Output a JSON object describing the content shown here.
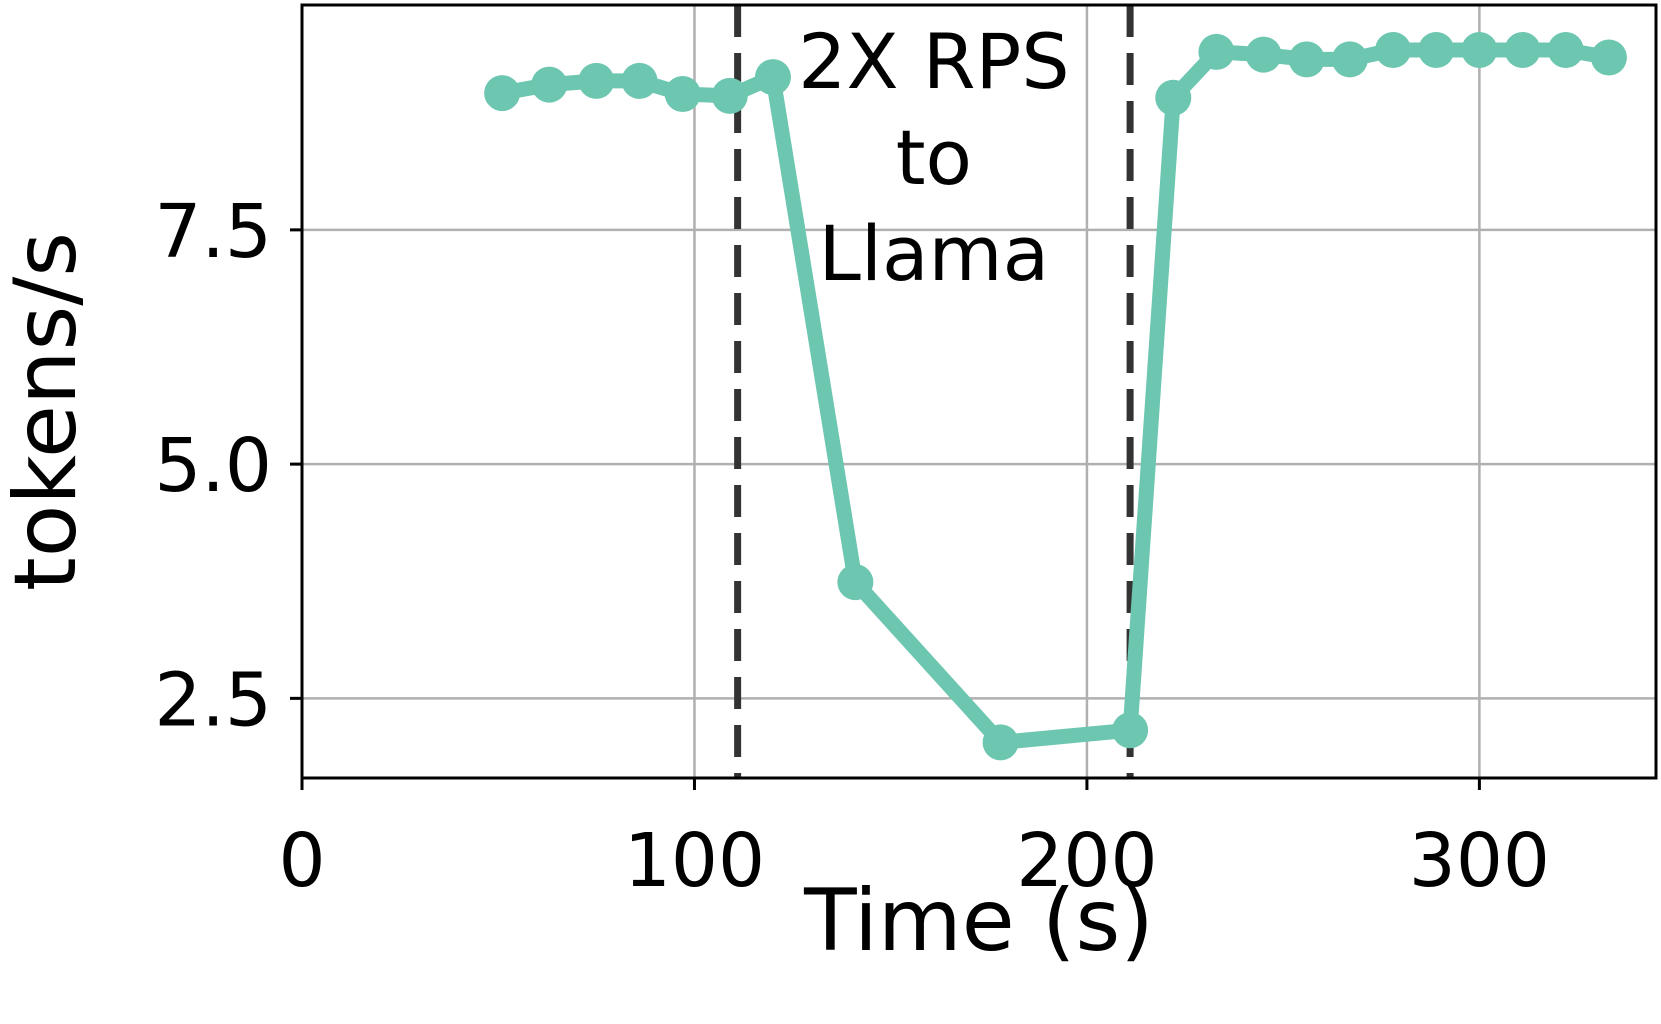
{
  "chart_data": {
    "type": "line",
    "xlabel": "Time (s)",
    "ylabel": "tokens/s",
    "xlim": [
      0,
      345
    ],
    "ylim": [
      1.65,
      9.9
    ],
    "x_ticks": [
      0,
      100,
      200,
      300
    ],
    "x_tick_labels": [
      "0",
      "100",
      "200",
      "300"
    ],
    "y_ticks": [
      2.5,
      5.0,
      7.5
    ],
    "y_tick_labels": [
      "2.5",
      "5.0",
      "7.5"
    ],
    "grid": true,
    "series": [
      {
        "color": "#6cc6b0",
        "marker": "circle",
        "x": [
          51,
          63,
          75,
          86,
          97,
          109,
          120,
          141,
          178,
          211,
          222,
          233,
          245,
          256,
          267,
          278,
          289,
          300,
          311,
          322,
          333
        ],
        "y": [
          8.96,
          9.05,
          9.09,
          9.09,
          8.95,
          8.93,
          9.13,
          3.74,
          2.03,
          2.16,
          8.91,
          9.4,
          9.37,
          9.32,
          9.32,
          9.42,
          9.42,
          9.42,
          9.42,
          9.42,
          9.34
        ]
      }
    ],
    "vlines": [
      {
        "x": 111,
        "style": "dashed",
        "color": "#333333"
      },
      {
        "x": 211,
        "style": "dashed",
        "color": "#333333"
      }
    ],
    "annotations": [
      {
        "lines": [
          "2X RPS",
          "to",
          "Llama"
        ],
        "x": 161
      }
    ]
  }
}
